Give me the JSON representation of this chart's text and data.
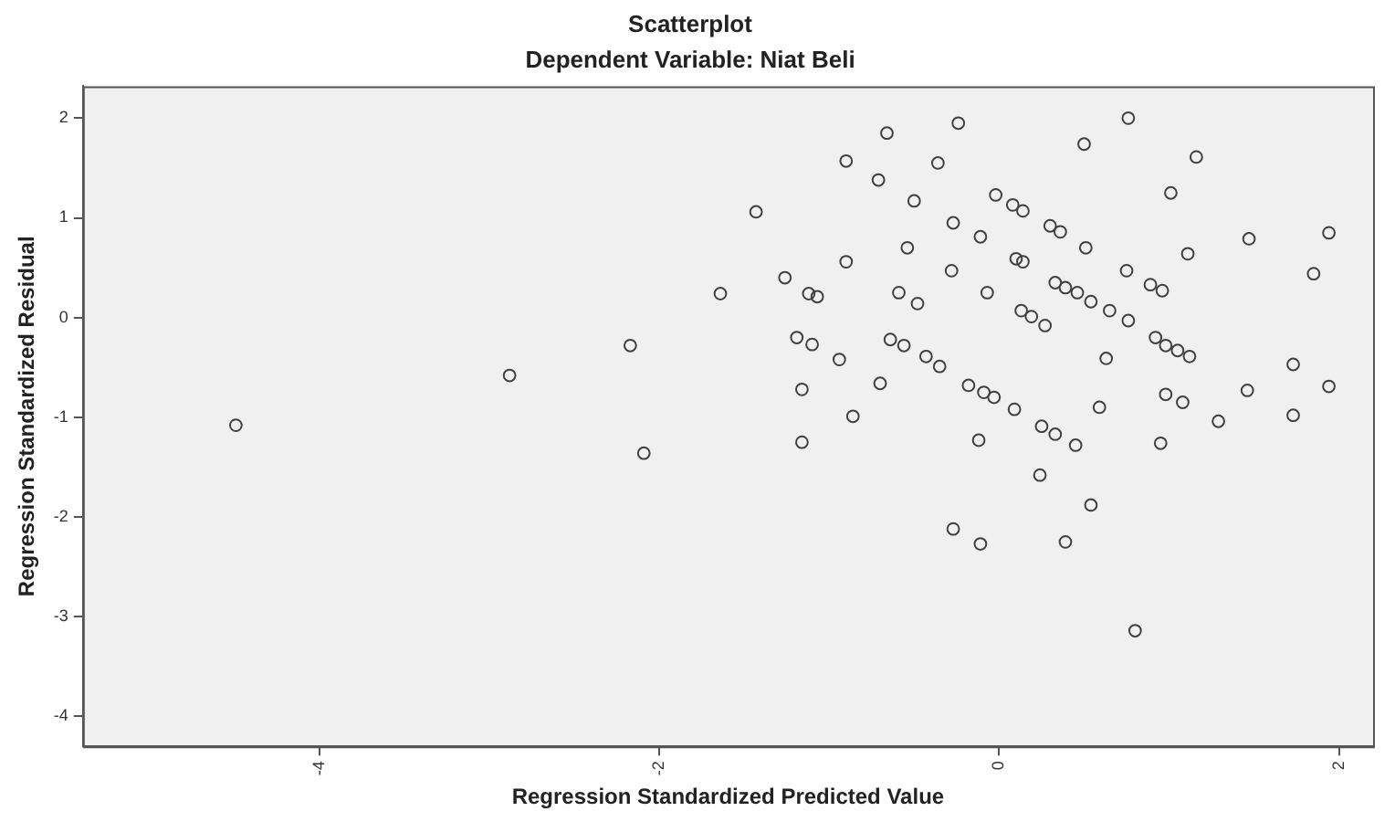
{
  "chart_data": {
    "type": "scatter",
    "title": "Scatterplot",
    "subtitle": "Dependent Variable: Niat Beli",
    "xlabel": "Regression Standardized Predicted Value",
    "ylabel": "Regression Standardized Residual",
    "xlim": [
      -5.39,
      2.2
    ],
    "xticks": [
      -4,
      -2,
      0,
      2
    ],
    "ylim": [
      -4.3,
      2.32
    ],
    "yticks": [
      -4,
      -3,
      -2,
      -1,
      0,
      1,
      2
    ],
    "grid": false,
    "legend": false,
    "marker": "circle",
    "series": [
      {
        "color": "#404040",
        "x": [
          -4.49,
          -2.88,
          -2.17,
          -2.09,
          -1.64,
          -0.24,
          -0.66,
          -0.9,
          -0.36,
          -0.71,
          -1.43,
          -0.5,
          -0.02,
          0.08,
          0.14,
          0.3,
          0.36,
          -0.27,
          -0.11,
          -0.54,
          -0.9,
          -0.28,
          0.1,
          0.14,
          -1.26,
          -1.12,
          -1.07,
          -0.59,
          -0.48,
          -0.07,
          0.13,
          0.19,
          0.27,
          -1.19,
          -1.1,
          -0.94,
          -0.64,
          -0.56,
          -0.43,
          -0.35,
          -1.16,
          -0.7,
          -0.18,
          -0.09,
          -0.03,
          0.09,
          -0.86,
          0.76,
          0.5,
          1.16,
          1.01,
          0.51,
          1.47,
          1.94,
          1.11,
          0.75,
          0.89,
          0.96,
          1.85,
          0.33,
          0.39,
          0.46,
          0.54,
          0.65,
          0.76,
          0.92,
          0.98,
          1.05,
          1.12,
          0.63,
          1.73,
          1.94,
          1.46,
          0.98,
          1.08,
          0.59,
          1.29,
          1.73,
          -1.16,
          -0.12,
          0.25,
          0.33,
          0.45,
          0.95,
          0.24,
          0.54,
          -0.27,
          -0.11,
          0.39,
          0.8
        ],
        "values": [
          -1.08,
          -0.58,
          -0.28,
          -1.36,
          0.24,
          1.95,
          1.85,
          1.57,
          1.55,
          1.38,
          1.06,
          1.17,
          1.23,
          1.13,
          1.07,
          0.92,
          0.86,
          0.95,
          0.81,
          0.7,
          0.56,
          0.47,
          0.59,
          0.56,
          0.4,
          0.24,
          0.21,
          0.25,
          0.14,
          0.25,
          0.07,
          0.01,
          -0.08,
          -0.2,
          -0.27,
          -0.42,
          -0.22,
          -0.28,
          -0.39,
          -0.49,
          -0.72,
          -0.66,
          -0.68,
          -0.75,
          -0.8,
          -0.92,
          -0.99,
          2.0,
          1.74,
          1.61,
          1.25,
          0.7,
          0.79,
          0.85,
          0.64,
          0.47,
          0.33,
          0.27,
          0.44,
          0.35,
          0.3,
          0.25,
          0.16,
          0.07,
          -0.03,
          -0.2,
          -0.28,
          -0.33,
          -0.39,
          -0.41,
          -0.47,
          -0.69,
          -0.73,
          -0.77,
          -0.85,
          -0.9,
          -1.04,
          -0.98,
          -1.25,
          -1.23,
          -1.09,
          -1.17,
          -1.28,
          -1.26,
          -1.58,
          -1.88,
          -2.12,
          -2.27,
          -2.25,
          -3.14
        ]
      }
    ]
  }
}
